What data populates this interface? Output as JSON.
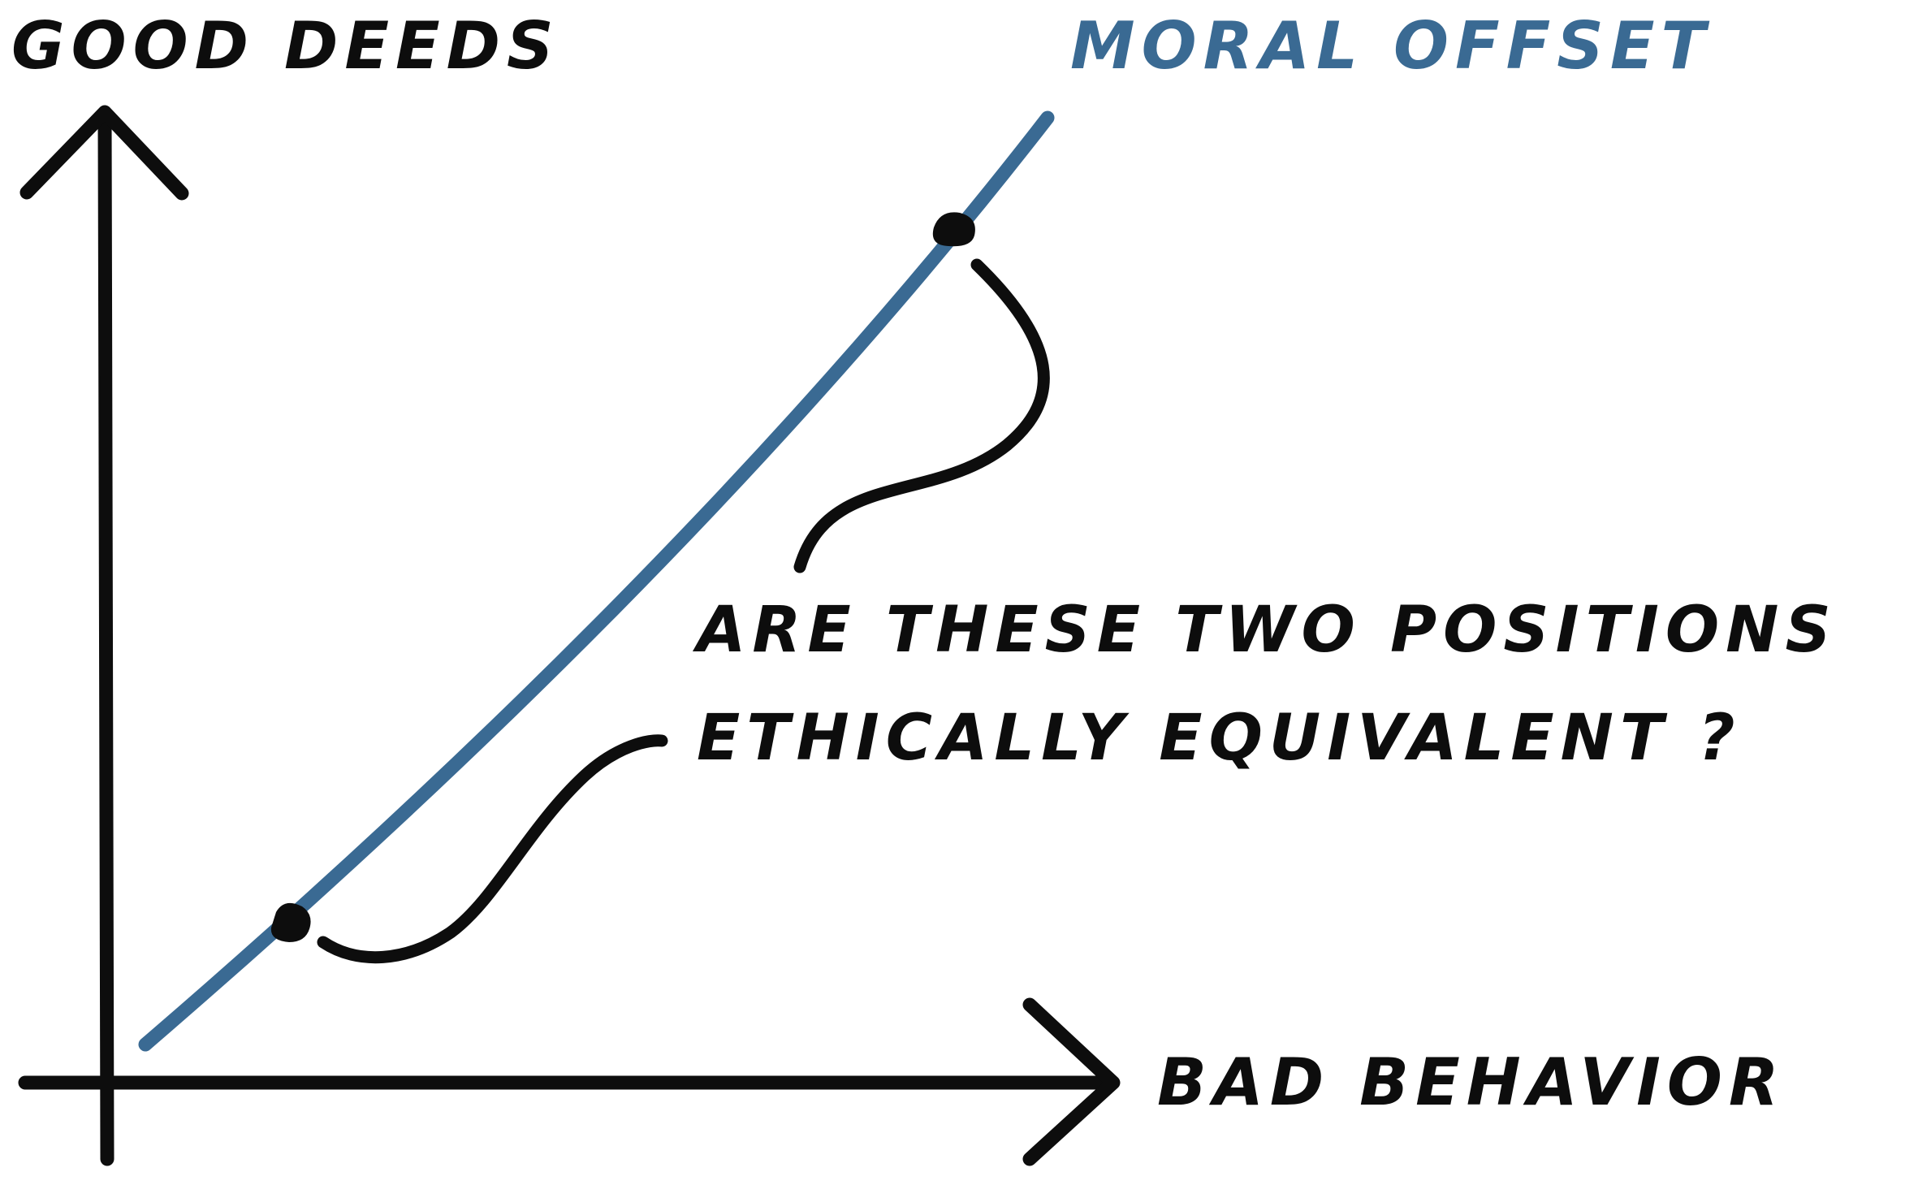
{
  "y_axis_label": "GOOD DEEDS",
  "x_axis_label": "BAD BEHAVIOR",
  "curve_label": "MORAL OFFSET",
  "question_line_1": "ARE THESE TWO POSITIONS",
  "question_line_2": "ETHICALLY EQUIVALENT ?",
  "colors": {
    "ink": "#0d0d0d",
    "curve": "#3a6a93"
  }
}
